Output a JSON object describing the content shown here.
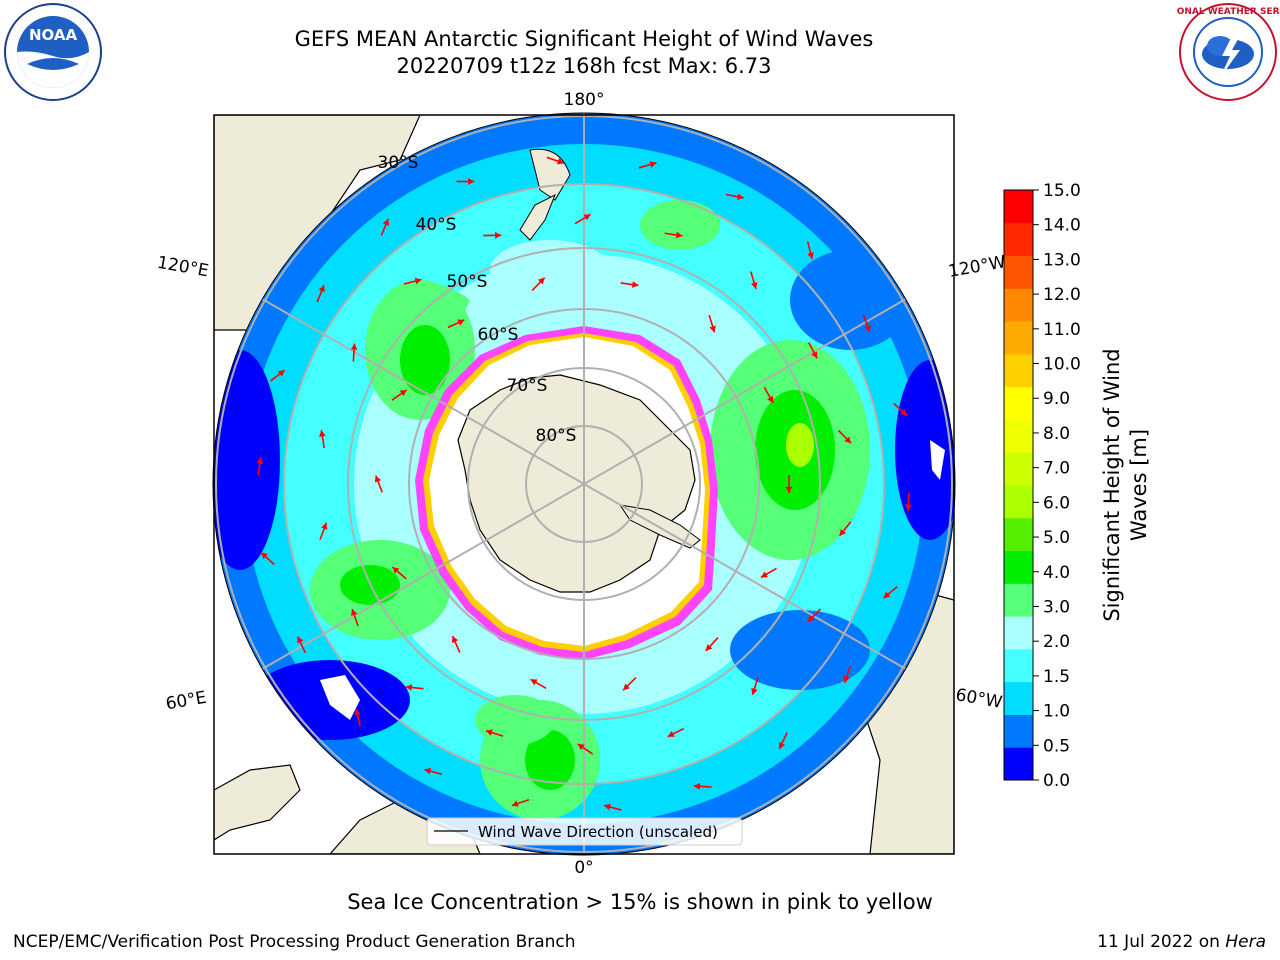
{
  "title": {
    "line1": "GEFS MEAN Antarctic Significant Height of Wind Waves",
    "line2": "20220709 t12z 168h fcst   Max: 6.73"
  },
  "map": {
    "projection": "south-polar-stereographic",
    "longitude_labels": [
      "180°",
      "120°E",
      "120°W",
      "60°E",
      "60°W",
      "0°"
    ],
    "latitude_labels": [
      "30°S",
      "40°S",
      "50°S",
      "60°S",
      "70°S",
      "80°S"
    ],
    "legend_label": "Wind Wave Direction (unscaled)",
    "arrow_color": "#ff0000",
    "land_color": "#efebd9",
    "sea_ice_color_range": [
      "#ff44ff",
      "#ffd000"
    ]
  },
  "colorbar": {
    "label_line1": "Significant Height of Wind",
    "label_line2": "Waves [m]",
    "ticks": [
      "0.0",
      "0.5",
      "1.0",
      "1.5",
      "2.0",
      "3.0",
      "4.0",
      "5.0",
      "6.0",
      "7.0",
      "8.0",
      "9.0",
      "10.0",
      "11.0",
      "12.0",
      "13.0",
      "14.0",
      "15.0"
    ],
    "colors": [
      "#0000ff",
      "#0078ff",
      "#00ddff",
      "#44ffff",
      "#aaffff",
      "#55ff77",
      "#00ee00",
      "#55ee00",
      "#aaff00",
      "#ccff00",
      "#eeff00",
      "#ffff00",
      "#ffd000",
      "#ffaa00",
      "#ff8800",
      "#ff5500",
      "#ff2a00",
      "#ff0000"
    ]
  },
  "annotation": "Sea Ice Concentration > 15% is shown in pink to yellow",
  "footer": {
    "left": "NCEP/EMC/Verification Post Processing Product Generation Branch",
    "right_date": "11 Jul 2022 on ",
    "right_host": "Hera"
  },
  "logos": {
    "left_text": "NOAA",
    "right_text": "NATIONAL WEATHER SERVICE"
  }
}
